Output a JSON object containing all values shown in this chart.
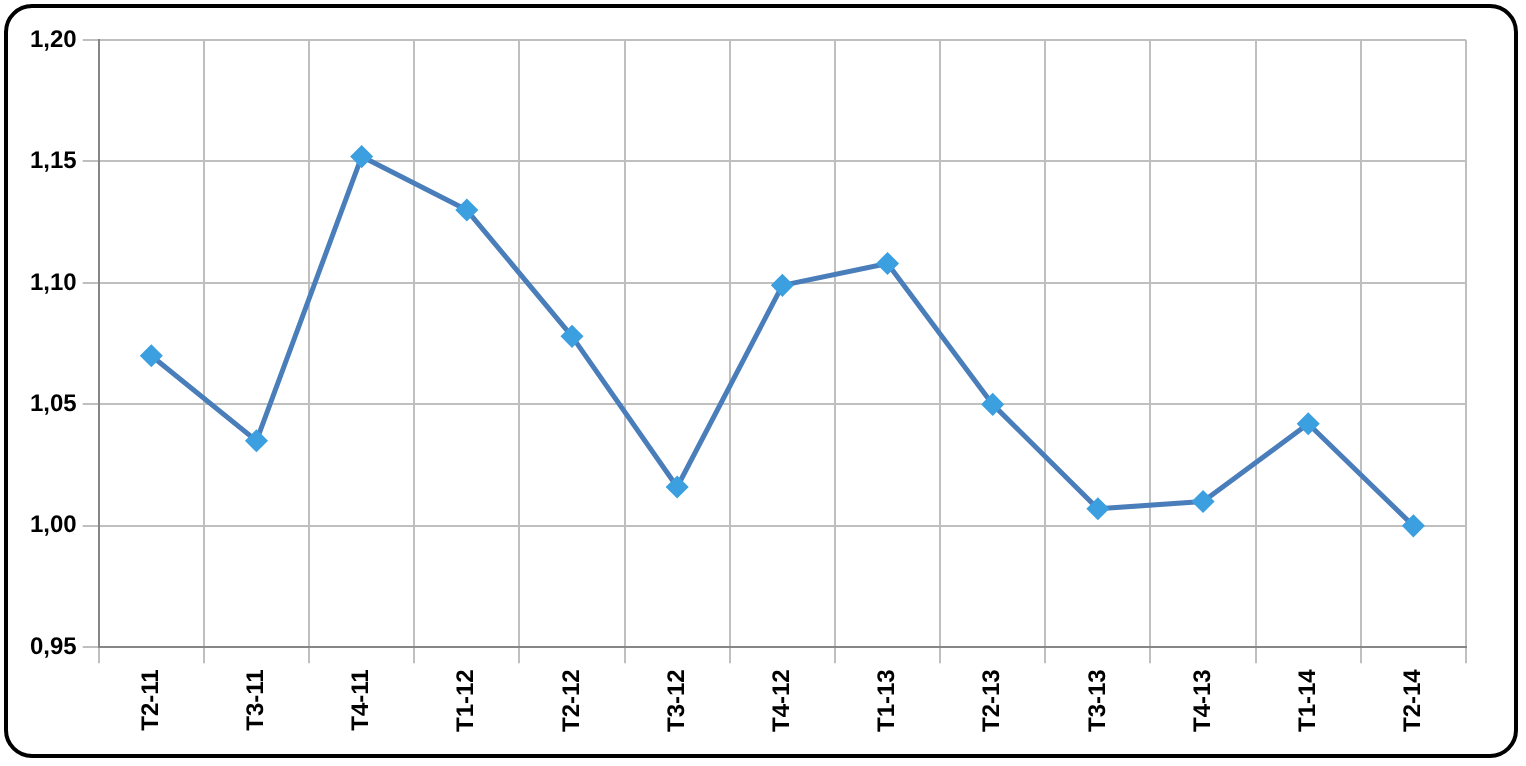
{
  "chart_data": {
    "type": "line",
    "categories": [
      "T2-11",
      "T3-11",
      "T4-11",
      "T1-12",
      "T2-12",
      "T3-12",
      "T4-12",
      "T1-13",
      "T2-13",
      "T3-13",
      "T4-13",
      "T1-14",
      "T2-14"
    ],
    "series": [
      {
        "color": "#4a7ebb",
        "values": [
          1.07,
          1.035,
          1.152,
          1.13,
          1.078,
          1.016,
          1.099,
          1.108,
          1.05,
          1.007,
          1.01,
          1.042,
          1.0
        ]
      }
    ],
    "ylim": [
      0.95,
      1.2
    ],
    "yticks": [
      {
        "value": 0.95,
        "label": "0,95"
      },
      {
        "value": 1.0,
        "label": "1,00"
      },
      {
        "value": 1.05,
        "label": "1,05"
      },
      {
        "value": 1.1,
        "label": "1,10"
      },
      {
        "value": 1.15,
        "label": "1,15"
      },
      {
        "value": 1.2,
        "label": "1,20"
      }
    ],
    "grid": true,
    "legend": false,
    "marker": "diamond",
    "line_style": "solid"
  }
}
